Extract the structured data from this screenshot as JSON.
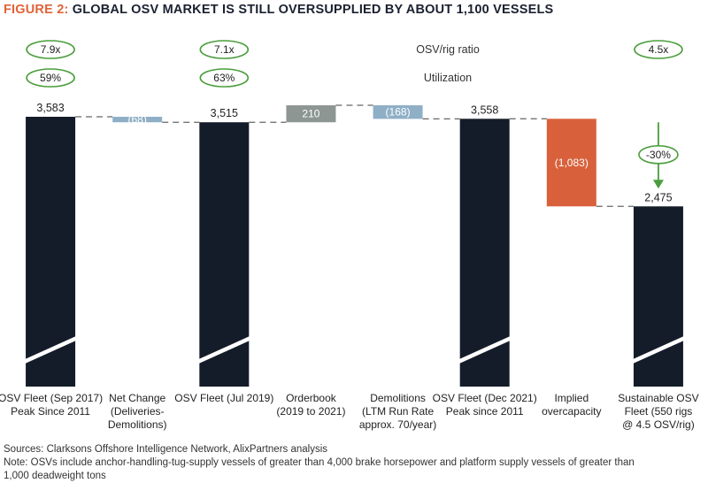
{
  "header": {
    "figure_label": "FIGURE 2:",
    "title": "GLOBAL OSV MARKET IS STILL OVERSUPPLIED BY ABOUT 1,100 VESSELS"
  },
  "chart_data": {
    "type": "waterfall",
    "categories": [
      "OSV Fleet (Sep 2017)\nPeak Since 2011",
      "Net Change\n(Deliveries-\nDemolitions)",
      "OSV Fleet (Jul 2019)",
      "Orderbook\n(2019 to 2021)",
      "Demolitions\n(LTM Run Rate\napprox. 70/year)",
      "OSV Fleet (Dec 2021)\nPeak since 2011",
      "Implied\novercapacity",
      "Sustainable OSV\nFleet (550 rigs\n@ 4.5 OSV/rig)"
    ],
    "bars": [
      {
        "kind": "total",
        "value": 3583,
        "label": "3,583"
      },
      {
        "kind": "change",
        "value": -68,
        "label": "(68)"
      },
      {
        "kind": "total",
        "value": 3515,
        "label": "3,515"
      },
      {
        "kind": "change",
        "value": 210,
        "label": "210"
      },
      {
        "kind": "change",
        "value": -168,
        "label": "(168)"
      },
      {
        "kind": "total",
        "value": 3558,
        "label": "3,558"
      },
      {
        "kind": "change",
        "value": -1083,
        "label": "(1,083)"
      },
      {
        "kind": "total",
        "value": 2475,
        "label": "2,475"
      }
    ],
    "axis_break": true,
    "ratio_rows": [
      {
        "label": "OSV/rig ratio",
        "values": [
          "7.9x",
          null,
          "7.1x",
          null,
          null,
          null,
          null,
          "4.5x"
        ]
      },
      {
        "label": "Utilization",
        "values": [
          "59%",
          null,
          "63%",
          null,
          null,
          null,
          null,
          null
        ]
      }
    ],
    "annotation": {
      "text": "-30%"
    },
    "colors": {
      "total": "#151c29",
      "net_change": "#8fafc6",
      "orderbook": "#8d9693",
      "demolitions": "#8fafc6",
      "overcapacity": "#d8613c",
      "oval": "#4a9e3b",
      "arrow": "#4a9e3b",
      "connector": "#666666"
    }
  },
  "footer": {
    "sources": "Sources: Clarksons Offshore Intelligence Network, AlixPartners analysis",
    "note_line1": "Note: OSVs include anchor-handling-tug-supply vessels of greater than 4,000 brake horsepower and platform supply vessels of greater than",
    "note_line2": "1,000 deadweight tons"
  }
}
